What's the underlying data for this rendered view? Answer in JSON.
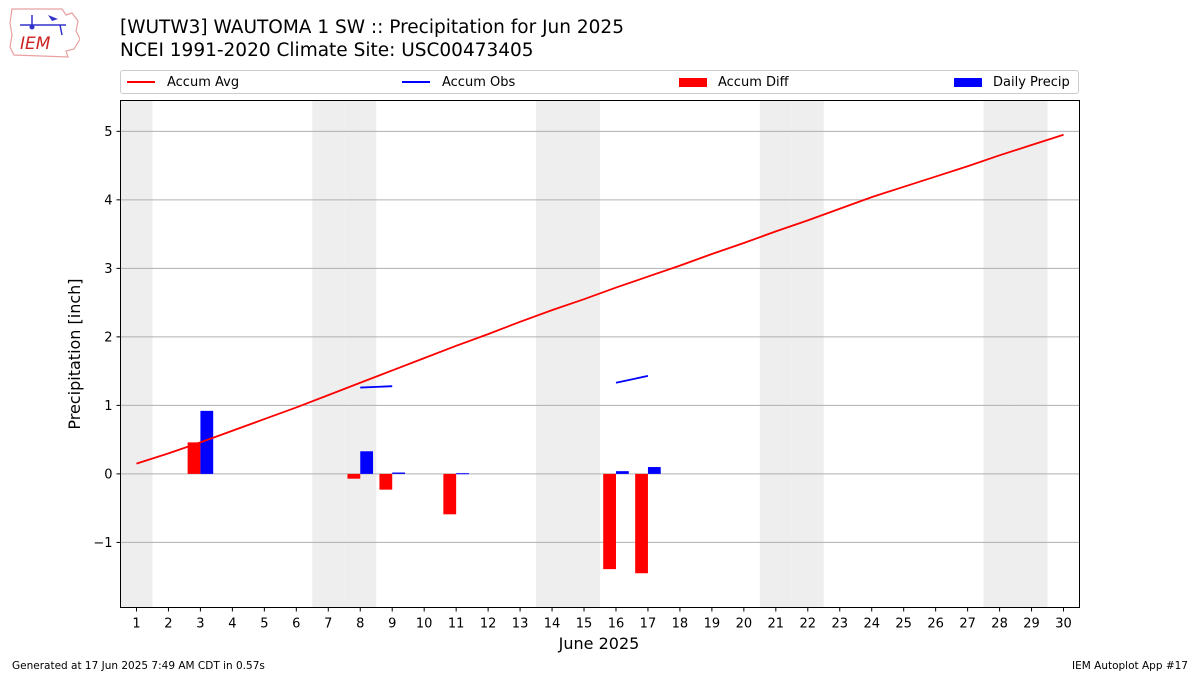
{
  "header": {
    "title": "[WUTW3] WAUTOMA 1 SW :: Precipitation for Jun 2025",
    "subtitle": "NCEI 1991-2020 Climate Site: USC00473405"
  },
  "logo": {
    "text": "IEM"
  },
  "footer": {
    "generated": "Generated at 17 Jun 2025 7:49 AM CDT in 0.57s",
    "app": "IEM Autoplot App #17"
  },
  "colors": {
    "avg": "#ff0000",
    "obs": "#0000ff",
    "diff": "#ff0000",
    "daily": "#0000ff",
    "weekend": "#eeeeee",
    "grid": "#b0b0b0"
  },
  "chart_data": {
    "type": "bar",
    "xlabel": "June 2025",
    "ylabel": "Precipitation [inch]",
    "xlim": [
      0.5,
      30.5
    ],
    "ylim": [
      -1.95,
      5.45
    ],
    "x_ticks": [
      1,
      2,
      3,
      4,
      5,
      6,
      7,
      8,
      9,
      10,
      11,
      12,
      13,
      14,
      15,
      16,
      17,
      18,
      19,
      20,
      21,
      22,
      23,
      24,
      25,
      26,
      27,
      28,
      29,
      30
    ],
    "y_ticks": [
      -1,
      0,
      1,
      2,
      3,
      4,
      5
    ],
    "y_tick_labels": [
      "−1",
      "0",
      "1",
      "2",
      "3",
      "4",
      "5"
    ],
    "grid": "horizontal",
    "legend": {
      "placement": "top",
      "entries": [
        "Accum Avg",
        "Accum Obs",
        "Accum Diff",
        "Daily Precip"
      ]
    },
    "weekend_days": [
      1,
      7,
      8,
      14,
      15,
      21,
      22,
      28,
      29
    ],
    "series": [
      {
        "name": "Accum Avg",
        "kind": "line",
        "color": "#ff0000",
        "x": [
          1,
          2,
          3,
          4,
          5,
          6,
          7,
          8,
          9,
          10,
          11,
          12,
          13,
          14,
          15,
          16,
          17,
          18,
          19,
          20,
          21,
          22,
          23,
          24,
          25,
          26,
          27,
          28,
          29,
          30
        ],
        "values": [
          0.15,
          0.3,
          0.46,
          0.63,
          0.8,
          0.97,
          1.15,
          1.33,
          1.51,
          1.69,
          1.87,
          2.04,
          2.22,
          2.39,
          2.55,
          2.72,
          2.88,
          3.04,
          3.21,
          3.37,
          3.54,
          3.7,
          3.87,
          4.04,
          4.19,
          4.34,
          4.49,
          4.65,
          4.8,
          4.95
        ]
      },
      {
        "name": "Accum Obs",
        "kind": "line",
        "color": "#0000ff",
        "segments": [
          {
            "x": [
              8,
              9
            ],
            "values": [
              1.26,
              1.28
            ]
          },
          {
            "x": [
              16,
              17
            ],
            "values": [
              1.33,
              1.43
            ]
          }
        ]
      },
      {
        "name": "Accum Diff",
        "kind": "bar",
        "color": "#ff0000",
        "x": [
          3,
          8,
          9,
          11,
          16,
          17
        ],
        "values": [
          0.46,
          -0.07,
          -0.23,
          -0.59,
          -1.39,
          -1.45
        ]
      },
      {
        "name": "Daily Precip",
        "kind": "bar",
        "color": "#0000ff",
        "x": [
          3,
          8,
          9,
          11,
          16,
          17
        ],
        "values": [
          0.92,
          0.33,
          0.02,
          0.01,
          0.04,
          0.1
        ]
      }
    ]
  }
}
